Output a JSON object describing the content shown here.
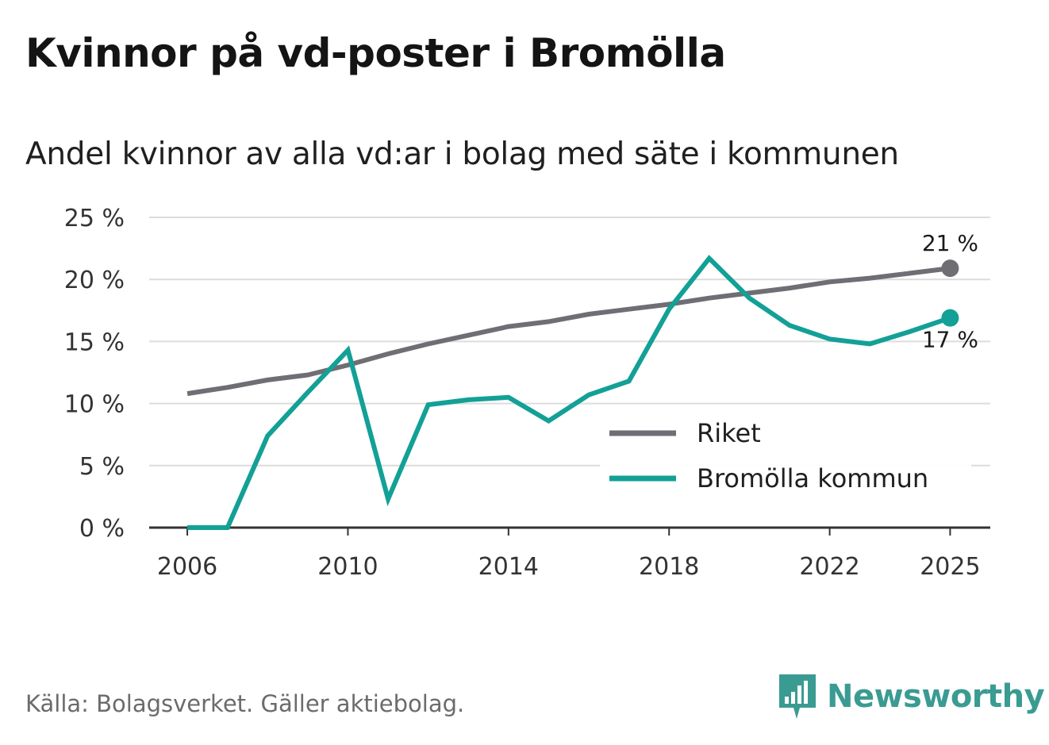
{
  "title": "Kvinnor på vd-poster i Bromölla",
  "subtitle": "Andel kvinnor av alla vd:ar i bolag med säte i kommunen",
  "source": "Källa: Bolagsverket. Gäller aktiebolag.",
  "brand": {
    "name": "Newsworthy",
    "color": "#3a9b92"
  },
  "chart_data": {
    "type": "line",
    "x": [
      2006,
      2007,
      2008,
      2009,
      2010,
      2011,
      2012,
      2013,
      2014,
      2015,
      2016,
      2017,
      2018,
      2019,
      2020,
      2021,
      2022,
      2023,
      2024,
      2025
    ],
    "xlim": [
      2005.05,
      2026.0
    ],
    "ylim": [
      0,
      25
    ],
    "x_ticks": [
      2006,
      2010,
      2014,
      2018,
      2022,
      2025
    ],
    "x_tick_labels": [
      "2006",
      "2010",
      "2014",
      "2018",
      "2022",
      "2025"
    ],
    "y_ticks": [
      0,
      5,
      10,
      15,
      20,
      25
    ],
    "y_tick_labels": [
      "0 %",
      "5 %",
      "10 %",
      "15 %",
      "20 %",
      "25 %"
    ],
    "grid": true,
    "legend_position": "bottom-right",
    "series": [
      {
        "name": "Riket",
        "color": "#6e6e74",
        "values": [
          10.8,
          11.3,
          11.9,
          12.3,
          13.1,
          14.0,
          14.8,
          15.5,
          16.2,
          16.6,
          17.2,
          17.6,
          18.0,
          18.5,
          18.9,
          19.3,
          19.8,
          20.1,
          20.5,
          20.9
        ],
        "end_label": "21 %",
        "end_label_position": "above"
      },
      {
        "name": "Bromölla kommun",
        "color": "#13a096",
        "values": [
          0.0,
          0.0,
          7.4,
          10.9,
          14.3,
          2.3,
          9.9,
          10.3,
          10.5,
          8.6,
          10.7,
          11.8,
          17.6,
          21.7,
          18.5,
          16.3,
          15.2,
          14.8,
          15.8,
          16.9
        ],
        "end_label": "17 %",
        "end_label_position": "below"
      }
    ]
  }
}
